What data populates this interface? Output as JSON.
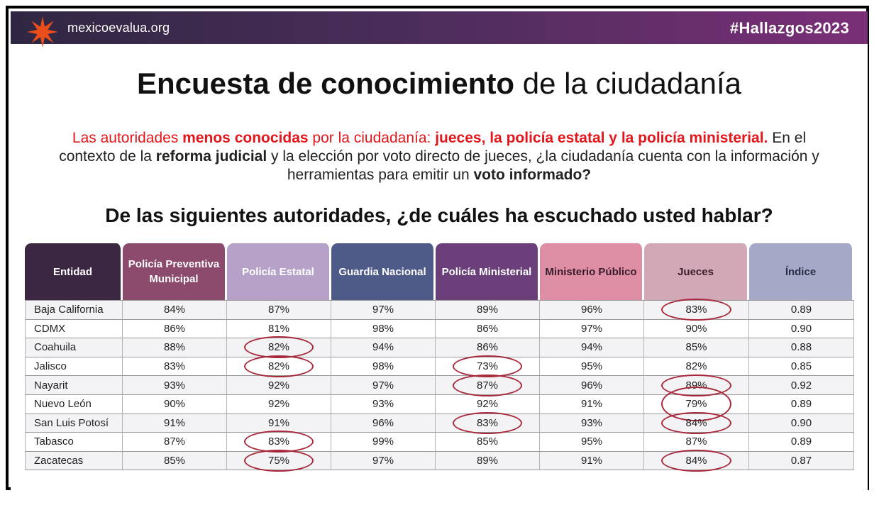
{
  "header": {
    "logo_text": "mexicoevalua.org",
    "hashtag": "#Hallazgos2023",
    "accent": "#e94e1b"
  },
  "title": {
    "bold": "Encuesta de conocimiento",
    "rest": " de la ciudadanía"
  },
  "intro": {
    "p1": "Las autoridades ",
    "p2": "menos conocidas",
    "p3": " por la ciudadanía: ",
    "p4": "jueces, la policía estatal y la policía ministerial.",
    "p5": " En el contexto de la ",
    "p6": "reforma judicial",
    "p7": " y la elección por voto directo de jueces, ¿la ciudadanía cuenta con la información y herramientas para emitir un ",
    "p8": "voto informado?"
  },
  "question": "De las siguientes autoridades, ¿de cuáles ha escuchado usted hablar?",
  "chart_data": {
    "type": "table",
    "columns": [
      "Entidad",
      "Policía Preventiva Municipal",
      "Policía Estatal",
      "Guardia Nacional",
      "Policía Ministerial",
      "Ministerio Público",
      "Jueces",
      "Índice"
    ],
    "header_colors": [
      "#3b2741",
      "#8c4a6d",
      "#b6a1c8",
      "#4e5a88",
      "#6a3f7a",
      "#df8fa5",
      "#d3a8b6",
      "#a6a8c8"
    ],
    "rows": [
      [
        "Baja California",
        "84%",
        "87%",
        "97%",
        "89%",
        "96%",
        "83%",
        "0.89"
      ],
      [
        "CDMX",
        "86%",
        "81%",
        "98%",
        "86%",
        "97%",
        "90%",
        "0.90"
      ],
      [
        "Coahuila",
        "88%",
        "82%",
        "94%",
        "86%",
        "94%",
        "85%",
        "0.88"
      ],
      [
        "Jalisco",
        "83%",
        "82%",
        "98%",
        "73%",
        "95%",
        "82%",
        "0.85"
      ],
      [
        "Nayarit",
        "93%",
        "92%",
        "97%",
        "87%",
        "96%",
        "89%",
        "0.92"
      ],
      [
        "Nuevo León",
        "90%",
        "92%",
        "93%",
        "92%",
        "91%",
        "79%",
        "0.89"
      ],
      [
        "San Luis Potosí",
        "91%",
        "91%",
        "96%",
        "83%",
        "93%",
        "84%",
        "0.90"
      ],
      [
        "Tabasco",
        "87%",
        "83%",
        "99%",
        "85%",
        "95%",
        "87%",
        "0.89"
      ],
      [
        "Zacatecas",
        "85%",
        "75%",
        "97%",
        "89%",
        "91%",
        "84%",
        "0.87"
      ]
    ],
    "highlight_color": "#a8293c",
    "highlighted_cells": [
      [
        0,
        6
      ],
      [
        2,
        2
      ],
      [
        3,
        2
      ],
      [
        3,
        4
      ],
      [
        4,
        4
      ],
      [
        4,
        6
      ],
      [
        5,
        6
      ],
      [
        6,
        6
      ],
      [
        6,
        4
      ],
      [
        7,
        2
      ],
      [
        8,
        2
      ],
      [
        8,
        6
      ]
    ],
    "tall_highlight_cells": [
      [
        5,
        6
      ]
    ]
  }
}
